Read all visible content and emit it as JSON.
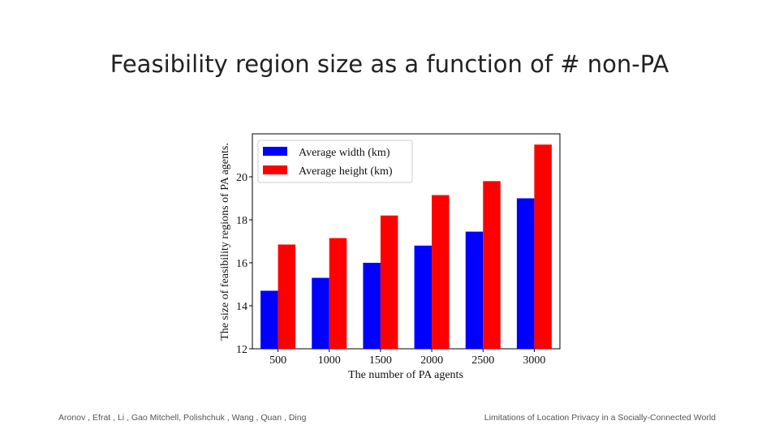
{
  "slide": {
    "title": "Feasibility region size as a function of # non-PA",
    "footer_left": "Aronov , Efrat , Li ,  Gao  Mitchell, Polishchuk , Wang , Quan , Ding",
    "footer_right": "Limitations of Location Privacy in a Socially-Connected World"
  },
  "chart_data": {
    "type": "bar",
    "title": "",
    "xlabel": "The number of PA agents",
    "ylabel": "The size of feasibility regions of PA agents.",
    "categories": [
      "500",
      "1000",
      "1500",
      "2000",
      "2500",
      "3000"
    ],
    "series": [
      {
        "name": "Average width (km)",
        "color": "#0000ff",
        "values": [
          14.7,
          15.3,
          16.0,
          16.8,
          17.45,
          19.0
        ]
      },
      {
        "name": "Average height (km)",
        "color": "#ff0000",
        "values": [
          16.85,
          17.15,
          18.2,
          19.15,
          19.8,
          21.5
        ]
      }
    ],
    "ylim": [
      12,
      22
    ],
    "yticks": [
      "12",
      "14",
      "16",
      "18",
      "20"
    ],
    "legend": "top-left",
    "grid": false
  }
}
